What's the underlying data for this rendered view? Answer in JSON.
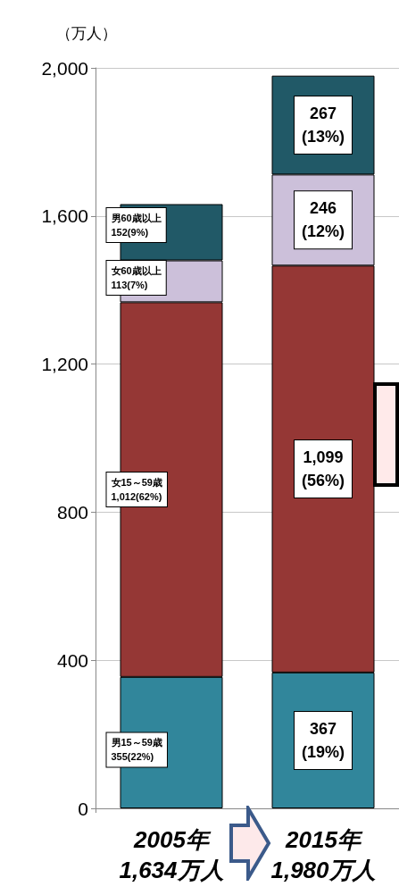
{
  "chart_data": {
    "type": "bar",
    "stacked": true,
    "ylabel": "（万人）",
    "categories": [
      "2005年",
      "2015年"
    ],
    "totals": [
      "1,634万人",
      "1,980万人"
    ],
    "series": [
      {
        "name": "男15～59歳",
        "color": "#31869b",
        "values": [
          355,
          367
        ],
        "value_labels": [
          "355(22%)",
          "367\n(19%)"
        ]
      },
      {
        "name": "女15～59歳",
        "color": "#953735",
        "values": [
          1012,
          1099
        ],
        "value_labels": [
          "1,012(62%)",
          "1,099\n(56%)"
        ]
      },
      {
        "name": "女60歳以上",
        "color": "#ccc0da",
        "values": [
          113,
          246
        ],
        "value_labels": [
          "113(7%)",
          "246\n(12%)"
        ]
      },
      {
        "name": "男60歳以上",
        "color": "#215967",
        "values": [
          152,
          267
        ],
        "value_labels": [
          "152(9%)",
          "267\n(13%)"
        ]
      }
    ],
    "ylim": [
      0,
      2000
    ],
    "yticks": [
      0,
      400,
      800,
      {
        "value": 1200,
        "label": "1,200"
      },
      {
        "value": 1600,
        "label": "1,600"
      },
      {
        "value": 2000,
        "label": "2,000"
      }
    ],
    "grid": "y",
    "legend": false
  }
}
